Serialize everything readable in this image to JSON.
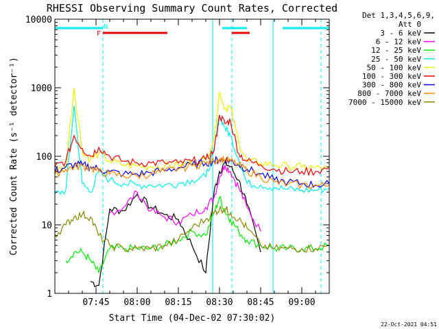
{
  "chart_data": {
    "type": "line",
    "title": "RHESSI Observing Summary Count Rates, Corrected",
    "xlabel": "Start Time (04-Dec-02 07:30:02)",
    "ylabel": "Corrected Count Rate (s⁻¹ detector⁻¹)",
    "yscale": "log",
    "ylim": [
      1,
      10000
    ],
    "xlim_minutes": [
      0,
      100
    ],
    "yticks": [
      {
        "value": 1,
        "label": "1"
      },
      {
        "value": 10,
        "label": "10"
      },
      {
        "value": 100,
        "label": "100"
      },
      {
        "value": 1000,
        "label": "1000"
      },
      {
        "value": 10000,
        "label": "10000"
      }
    ],
    "xticks": [
      {
        "minute": 15,
        "label": "07:45"
      },
      {
        "minute": 30,
        "label": "08:00"
      },
      {
        "minute": 45,
        "label": "08:15"
      },
      {
        "minute": 60,
        "label": "08:30"
      },
      {
        "minute": 75,
        "label": "08:45"
      },
      {
        "minute": 90,
        "label": "09:00"
      }
    ],
    "legend_header": [
      "Det 1,3,4,5,6,9,",
      "Att 0"
    ],
    "legend_position": "top-right, outside plot",
    "x": [
      0,
      4,
      7,
      10,
      13,
      16,
      20,
      25,
      30,
      35,
      40,
      45,
      50,
      55,
      58,
      60,
      62,
      64,
      67,
      70,
      75,
      80,
      85,
      90,
      95,
      100
    ],
    "series": [
      {
        "name": "3 - 6 keV",
        "color": "#000000",
        "values": [
          null,
          null,
          null,
          null,
          1.5,
          1.3,
          17,
          16,
          28,
          18,
          14,
          12,
          5,
          2,
          30,
          60,
          80,
          70,
          45,
          20,
          4,
          null,
          null,
          null,
          null,
          null
        ]
      },
      {
        "name": "6 - 12 keV",
        "color": "#ff00ff",
        "values": [
          null,
          null,
          null,
          null,
          null,
          null,
          15,
          18,
          30,
          16,
          13,
          11,
          14,
          18,
          25,
          50,
          75,
          60,
          35,
          18,
          8,
          null,
          null,
          null,
          null,
          null
        ]
      },
      {
        "name": "12 - 25 keV",
        "color": "#00ee00",
        "values": [
          null,
          3,
          4,
          4,
          3,
          2,
          4.5,
          4.5,
          4.5,
          4.5,
          5,
          6,
          8,
          7,
          15,
          25,
          16,
          12,
          8,
          6,
          5,
          4.5,
          4.5,
          4.5,
          4.5,
          5
        ]
      },
      {
        "name": "25 - 50 keV",
        "color": "#00eeee",
        "values": [
          28,
          32,
          550,
          40,
          30,
          60,
          45,
          40,
          38,
          38,
          38,
          40,
          45,
          50,
          120,
          400,
          260,
          200,
          90,
          40,
          38,
          35,
          33,
          32,
          32,
          34
        ]
      },
      {
        "name": "50 - 100 keV",
        "color": "#eeee00",
        "values": [
          60,
          70,
          1000,
          120,
          90,
          110,
          85,
          75,
          72,
          70,
          72,
          75,
          80,
          88,
          180,
          850,
          500,
          520,
          160,
          85,
          80,
          75,
          72,
          70,
          68,
          65
        ]
      },
      {
        "name": "100 - 300 keV",
        "color": "#ee0000",
        "values": [
          70,
          85,
          200,
          130,
          100,
          135,
          100,
          85,
          80,
          80,
          80,
          80,
          85,
          90,
          120,
          400,
          300,
          330,
          110,
          85,
          75,
          65,
          60,
          60,
          60,
          68
        ]
      },
      {
        "name": "300 - 800 keV",
        "color": "#0000ee",
        "values": [
          60,
          70,
          75,
          75,
          70,
          65,
          60,
          55,
          55,
          58,
          62,
          68,
          75,
          80,
          85,
          90,
          88,
          85,
          75,
          65,
          55,
          45,
          42,
          40,
          38,
          40
        ]
      },
      {
        "name": "800 - 7000 keV",
        "color": "#ff8800",
        "values": [
          55,
          65,
          70,
          72,
          68,
          60,
          55,
          52,
          52,
          55,
          60,
          66,
          73,
          80,
          85,
          92,
          90,
          85,
          75,
          62,
          50,
          42,
          39,
          38,
          37,
          38
        ]
      },
      {
        "name": "7000 - 15000 keV",
        "color": "#888800",
        "values": [
          7,
          10,
          13,
          14,
          13,
          7,
          5,
          4.5,
          4.5,
          4.5,
          5,
          6,
          9,
          12,
          15,
          17,
          17,
          15,
          12,
          9,
          5,
          4.5,
          4.5,
          4.5,
          4.5,
          5
        ]
      }
    ],
    "flag_bars": [
      {
        "label": "N",
        "color": "#00eeee",
        "segments": [
          [
            0,
            17.5
          ],
          [
            61,
            70
          ],
          [
            83,
            100
          ]
        ],
        "label_at": 18.5
      },
      {
        "label": "F",
        "color": "#ee0000",
        "segments": [
          [
            17.5,
            41
          ],
          [
            64.5,
            71
          ]
        ],
        "label_at": 16
      }
    ],
    "vertical_markers": [
      {
        "minute": 17.5,
        "style": "dashed",
        "color": "#00eeee"
      },
      {
        "minute": 57.5,
        "style": "solid",
        "color": "#00eeee"
      },
      {
        "minute": 64.5,
        "style": "dashed",
        "color": "#00eeee"
      },
      {
        "minute": 79.5,
        "style": "solid",
        "color": "#00eeee"
      },
      {
        "minute": 97,
        "style": "dashed",
        "color": "#00eeee"
      }
    ],
    "footer_date": "22-Oct-2021 04:51"
  }
}
